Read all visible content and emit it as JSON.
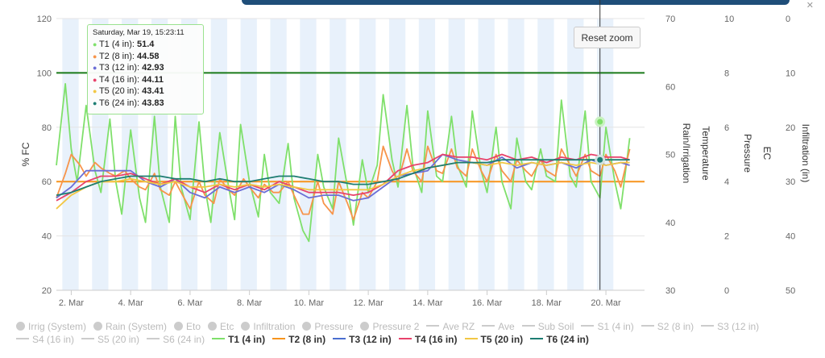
{
  "chart_data": {
    "type": "line",
    "ylabel": "% FC",
    "ylim": [
      20,
      120
    ],
    "yticks": [
      "20",
      "40",
      "60",
      "80",
      "100",
      "120"
    ],
    "secondary_axes": [
      {
        "label": "Rain/Irrigation",
        "ticks": [
          "30",
          "40",
          "50",
          "60",
          "70"
        ]
      },
      {
        "label": "Temperature",
        "ticks": [
          "",
          "",
          "",
          "",
          ""
        ]
      },
      {
        "label": "Pressure",
        "ticks": [
          "0",
          "2",
          "4",
          "6",
          "8",
          "10"
        ]
      },
      {
        "label": "EC",
        "ticks": [
          "",
          "",
          "",
          "",
          "",
          ""
        ]
      },
      {
        "label": "Infiltration (in)",
        "ticks": [
          "50",
          "40",
          "30",
          "20",
          "10",
          "0"
        ]
      }
    ],
    "x_ticks": [
      "2. Mar",
      "4. Mar",
      "6. Mar",
      "8. Mar",
      "10. Mar",
      "12. Mar",
      "14. Mar",
      "16. Mar",
      "18. Mar",
      "20. Mar"
    ],
    "x_range_days": [
      1.5,
      21.3
    ],
    "reference_lines": [
      {
        "value": 100,
        "color": "#1a7a1a"
      },
      {
        "value": 60,
        "color": "#f7941d"
      }
    ],
    "series": [
      {
        "name": "T1 (4 in)",
        "color": "#7fe06b",
        "x": [
          1.5,
          1.8,
          2.0,
          2.2,
          2.5,
          2.8,
          3.0,
          3.3,
          3.5,
          3.7,
          4.0,
          4.3,
          4.5,
          4.8,
          5.0,
          5.3,
          5.5,
          5.7,
          6.0,
          6.3,
          6.5,
          6.7,
          7.0,
          7.3,
          7.5,
          7.7,
          8.0,
          8.3,
          8.5,
          8.7,
          9.0,
          9.3,
          9.5,
          9.8,
          10.0,
          10.3,
          10.5,
          10.8,
          11.0,
          11.3,
          11.5,
          11.8,
          12.0,
          12.3,
          12.5,
          12.8,
          13.0,
          13.3,
          13.5,
          13.8,
          14.0,
          14.3,
          14.5,
          14.8,
          15.0,
          15.3,
          15.5,
          15.8,
          16.0,
          16.3,
          16.5,
          16.8,
          17.0,
          17.3,
          17.5,
          17.8,
          18.0,
          18.3,
          18.5,
          18.8,
          19.0,
          19.3,
          19.5,
          19.8,
          20.0,
          20.3,
          20.5,
          20.8
        ],
        "values": [
          66,
          96,
          72,
          60,
          88,
          64,
          56,
          83,
          60,
          48,
          79,
          54,
          45,
          84,
          58,
          45,
          84,
          58,
          46,
          82,
          58,
          45,
          78,
          58,
          46,
          81,
          60,
          47,
          70,
          56,
          52,
          74,
          54,
          42,
          38,
          70,
          58,
          50,
          76,
          58,
          44,
          68,
          56,
          66,
          92,
          68,
          58,
          88,
          66,
          56,
          86,
          62,
          60,
          84,
          66,
          58,
          86,
          64,
          56,
          80,
          60,
          50,
          76,
          60,
          57,
          72,
          62,
          60,
          90,
          62,
          58,
          86,
          60,
          54,
          80,
          60,
          50,
          76
        ]
      },
      {
        "name": "T2 (8 in)",
        "color": "#f7944a",
        "x": [
          1.5,
          1.8,
          2.0,
          2.3,
          2.5,
          2.8,
          3.0,
          3.3,
          3.5,
          3.8,
          4.0,
          4.3,
          4.5,
          4.8,
          5.0,
          5.3,
          5.5,
          5.8,
          6.0,
          6.3,
          6.5,
          6.8,
          7.0,
          7.3,
          7.5,
          7.8,
          8.0,
          8.3,
          8.5,
          8.8,
          9.0,
          9.3,
          9.5,
          9.8,
          10.0,
          10.3,
          10.5,
          10.8,
          11.0,
          11.3,
          11.5,
          11.8,
          12.0,
          12.3,
          12.5,
          12.8,
          13.0,
          13.3,
          13.5,
          13.8,
          14.0,
          14.3,
          14.5,
          14.8,
          15.0,
          15.3,
          15.5,
          15.8,
          16.0,
          16.3,
          16.5,
          16.8,
          17.0,
          17.3,
          17.5,
          17.8,
          18.0,
          18.3,
          18.5,
          18.8,
          19.0,
          19.3,
          19.5,
          19.8,
          20.0,
          20.3,
          20.5,
          20.8
        ],
        "values": [
          54,
          63,
          70,
          66,
          62,
          67,
          65,
          63,
          62,
          64,
          61,
          58,
          57,
          63,
          57,
          55,
          60,
          54,
          50,
          60,
          55,
          52,
          61,
          57,
          55,
          61,
          58,
          54,
          59,
          56,
          56,
          60,
          55,
          48,
          48,
          60,
          52,
          48,
          60,
          52,
          46,
          56,
          54,
          60,
          73,
          64,
          60,
          72,
          64,
          60,
          73,
          64,
          63,
          72,
          65,
          62,
          72,
          64,
          60,
          70,
          64,
          60,
          68,
          64,
          62,
          68,
          64,
          62,
          72,
          66,
          62,
          70,
          64,
          62,
          70,
          64,
          58,
          72
        ]
      },
      {
        "name": "T3 (12 in)",
        "color": "#6b6ed6",
        "x": [
          1.5,
          2.0,
          2.5,
          3.0,
          3.5,
          4.0,
          4.5,
          5.0,
          5.5,
          6.0,
          6.5,
          7.0,
          7.5,
          8.0,
          8.5,
          9.0,
          9.5,
          10.0,
          10.5,
          11.0,
          11.5,
          12.0,
          12.5,
          13.0,
          13.5,
          14.0,
          14.5,
          15.0,
          15.5,
          16.0,
          16.5,
          17.0,
          17.5,
          18.0,
          18.5,
          19.0,
          19.5,
          20.0,
          20.5,
          20.8
        ],
        "values": [
          54,
          58,
          64,
          64,
          64,
          64,
          60,
          58,
          61,
          56,
          54,
          58,
          56,
          58,
          56,
          59,
          57,
          54,
          55,
          55,
          53,
          54,
          58,
          62,
          63,
          64,
          70,
          68,
          67,
          66,
          69,
          65,
          67,
          66,
          67,
          65,
          68,
          66,
          67,
          66
        ]
      },
      {
        "name": "T4 (16 in)",
        "color": "#e8426b",
        "x": [
          1.5,
          2.0,
          2.5,
          3.0,
          3.5,
          4.0,
          4.5,
          5.0,
          5.5,
          6.0,
          6.5,
          7.0,
          7.5,
          8.0,
          8.5,
          9.0,
          9.5,
          10.0,
          10.5,
          11.0,
          11.5,
          12.0,
          12.5,
          13.0,
          13.5,
          14.0,
          14.5,
          15.0,
          15.5,
          16.0,
          16.5,
          17.0,
          17.5,
          18.0,
          18.5,
          19.0,
          19.5,
          20.0,
          20.5,
          20.8
        ],
        "values": [
          53,
          56,
          60,
          62,
          62,
          63,
          61,
          59,
          61,
          58,
          56,
          59,
          57,
          59,
          57,
          60,
          58,
          56,
          56,
          56,
          55,
          56,
          59,
          64,
          66,
          67,
          70,
          69,
          69,
          68,
          70,
          68,
          69,
          67,
          69,
          68,
          70,
          69,
          69,
          68
        ]
      },
      {
        "name": "T5 (20 in)",
        "color": "#f2c744",
        "x": [
          1.5,
          2.0,
          2.5,
          3.0,
          3.5,
          4.0,
          4.5,
          5.0,
          5.5,
          6.0,
          6.5,
          7.0,
          7.5,
          8.0,
          8.5,
          9.0,
          9.5,
          10.0,
          10.5,
          11.0,
          11.5,
          12.0,
          12.5,
          13.0,
          13.5,
          14.0,
          14.5,
          15.0,
          15.5,
          16.0,
          16.5,
          17.0,
          17.5,
          18.0,
          18.5,
          19.0,
          19.5,
          20.0,
          20.5,
          20.8
        ],
        "values": [
          50,
          55,
          58,
          60,
          60,
          61,
          60,
          59,
          60,
          58,
          58,
          59,
          58,
          59,
          58,
          59,
          58,
          57,
          57,
          57,
          57,
          57,
          59,
          62,
          64,
          65,
          66,
          67,
          67,
          66,
          67,
          66,
          67,
          66,
          67,
          66,
          67,
          66,
          67,
          67
        ]
      },
      {
        "name": "T6 (24 in)",
        "color": "#1d7d72",
        "x": [
          1.5,
          2.0,
          2.5,
          3.0,
          3.5,
          4.0,
          4.5,
          5.0,
          5.5,
          6.0,
          6.5,
          7.0,
          7.5,
          8.0,
          8.5,
          9.0,
          9.5,
          10.0,
          10.5,
          11.0,
          11.5,
          12.0,
          12.5,
          13.0,
          13.5,
          14.0,
          14.5,
          15.0,
          15.5,
          16.0,
          16.5,
          17.0,
          17.5,
          18.0,
          18.5,
          19.0,
          19.5,
          20.0,
          20.5,
          20.8
        ],
        "values": [
          55,
          56,
          58,
          60,
          61,
          62,
          62,
          62,
          61,
          61,
          60,
          61,
          60,
          60,
          61,
          62,
          62,
          61,
          60,
          60,
          59,
          59,
          60,
          61,
          63,
          65,
          66,
          67,
          67,
          67,
          68,
          68,
          68,
          68,
          68,
          68,
          68,
          68,
          68,
          68
        ]
      }
    ],
    "tooltip": {
      "header": "Saturday, Mar 19, 15:23:11",
      "rows": [
        {
          "label": "T1 (4 in):",
          "value": "51.4"
        },
        {
          "label": "T2 (8 in):",
          "value": "44.58"
        },
        {
          "label": "T3 (12 in):",
          "value": "42.93"
        },
        {
          "label": "T4 (16 in):",
          "value": "44.11"
        },
        {
          "label": "T5 (20 in):",
          "value": "43.41"
        },
        {
          "label": "T6 (24 in):",
          "value": "43.83"
        }
      ]
    },
    "reset_zoom_label": "Reset zoom",
    "legend": [
      {
        "label": "Irrig (System)",
        "symbol": "circle",
        "active": false
      },
      {
        "label": "Rain (System)",
        "symbol": "circle",
        "active": false
      },
      {
        "label": "Eto",
        "symbol": "circle",
        "active": false
      },
      {
        "label": "Etc",
        "symbol": "circle",
        "active": false
      },
      {
        "label": "Infiltration",
        "symbol": "circle",
        "active": false
      },
      {
        "label": "Pressure",
        "symbol": "circle",
        "active": false
      },
      {
        "label": "Pressure 2",
        "symbol": "circle",
        "active": false
      },
      {
        "label": "Ave RZ",
        "symbol": "line",
        "active": false
      },
      {
        "label": "Ave",
        "symbol": "line",
        "active": false
      },
      {
        "label": "Sub Soil",
        "symbol": "line",
        "active": false
      },
      {
        "label": "S1 (4 in)",
        "symbol": "line",
        "active": false
      },
      {
        "label": "S2 (8 in)",
        "symbol": "line",
        "active": false
      },
      {
        "label": "S3 (12 in)",
        "symbol": "line",
        "active": false
      },
      {
        "label": "S4 (16 in)",
        "symbol": "line",
        "active": false
      },
      {
        "label": "S5 (20 in)",
        "symbol": "line",
        "active": false
      },
      {
        "label": "S6 (24 in)",
        "symbol": "line",
        "active": false
      },
      {
        "label": "T1 (4 in)",
        "symbol": "line",
        "color": "#7fe06b",
        "active": true
      },
      {
        "label": "T2 (8 in)",
        "symbol": "line",
        "color": "#f7941d",
        "active": true
      },
      {
        "label": "T3 (12 in)",
        "symbol": "line",
        "color": "#4a6fd0",
        "active": true
      },
      {
        "label": "T4 (16 in)",
        "symbol": "line",
        "color": "#e8426b",
        "active": true
      },
      {
        "label": "T5 (20 in)",
        "symbol": "line",
        "color": "#f2c744",
        "active": true
      },
      {
        "label": "T6 (24 in)",
        "symbol": "line",
        "color": "#1d7d72",
        "active": true
      }
    ]
  }
}
